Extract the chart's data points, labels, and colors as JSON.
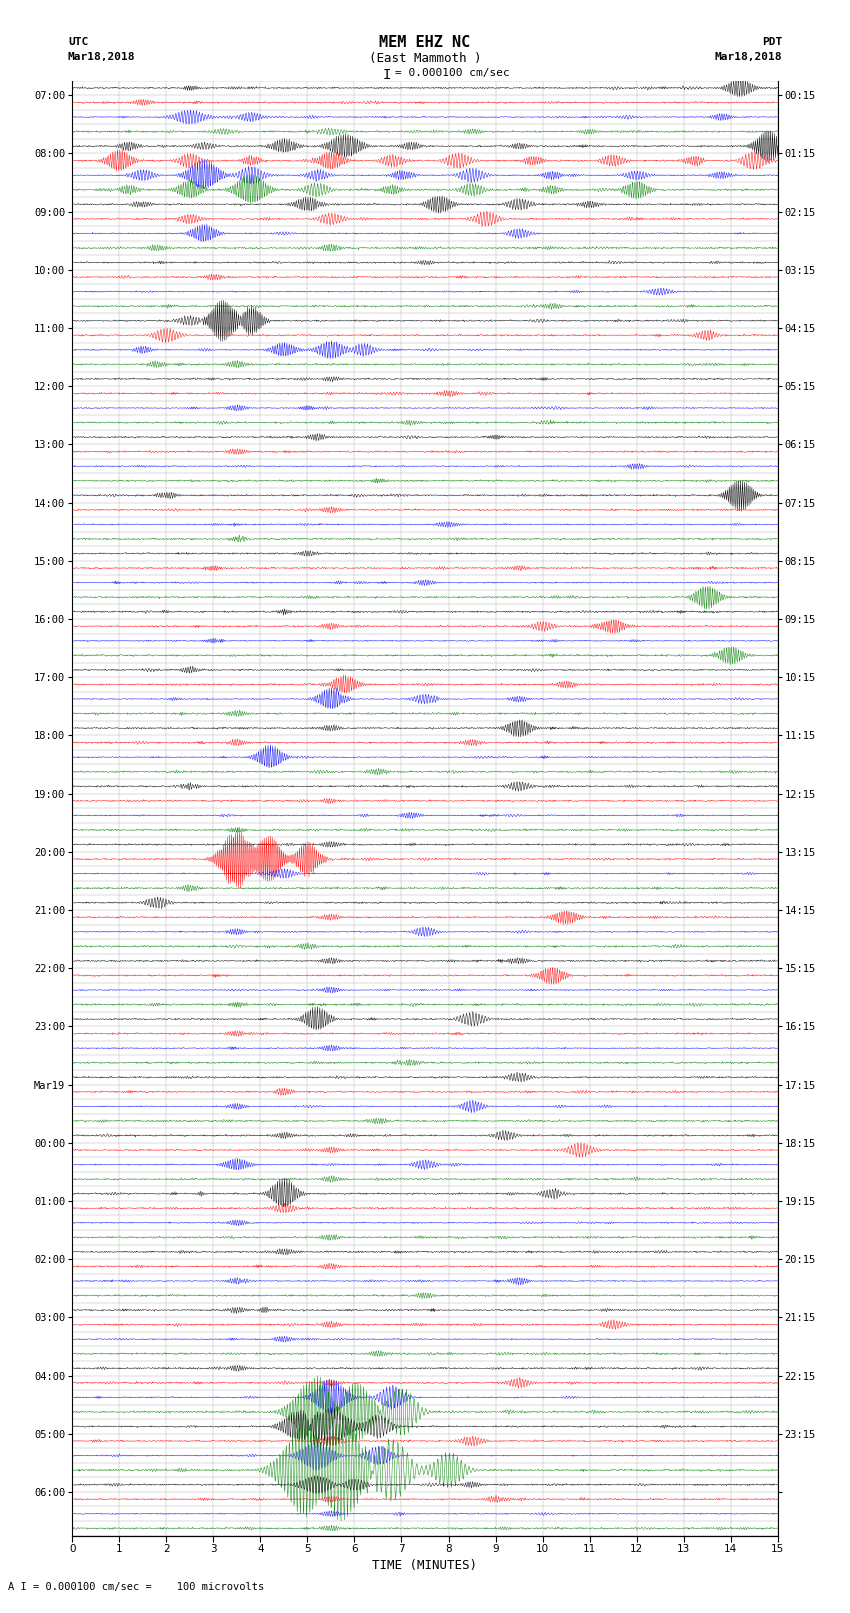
{
  "title_line1": "MEM EHZ NC",
  "title_line2": "(East Mammoth )",
  "scale_text": "I = 0.000100 cm/sec",
  "bottom_note": "A I = 0.000100 cm/sec =    100 microvolts",
  "utc_label": "UTC",
  "utc_date": "Mar18,2018",
  "pdt_label": "PDT",
  "pdt_date": "Mar18,2018",
  "xlabel": "TIME (MINUTES)",
  "xmin": 0,
  "xmax": 15,
  "bg_color": "#ffffff",
  "trace_colors": [
    "black",
    "red",
    "blue",
    "green"
  ],
  "grid_color": "#aaaaaa",
  "n_rows": 100,
  "noise_amplitude": 0.06,
  "utc_times": [
    "07:00",
    "",
    "",
    "",
    "08:00",
    "",
    "",
    "",
    "09:00",
    "",
    "",
    "",
    "10:00",
    "",
    "",
    "",
    "11:00",
    "",
    "",
    "",
    "12:00",
    "",
    "",
    "",
    "13:00",
    "",
    "",
    "",
    "14:00",
    "",
    "",
    "",
    "15:00",
    "",
    "",
    "",
    "16:00",
    "",
    "",
    "",
    "17:00",
    "",
    "",
    "",
    "18:00",
    "",
    "",
    "",
    "19:00",
    "",
    "",
    "",
    "20:00",
    "",
    "",
    "",
    "21:00",
    "",
    "",
    "",
    "22:00",
    "",
    "",
    "",
    "23:00",
    "",
    "",
    "",
    "Mar19",
    "",
    "",
    "",
    "00:00",
    "",
    "",
    "",
    "01:00",
    "",
    "",
    "",
    "02:00",
    "",
    "",
    "",
    "03:00",
    "",
    "",
    "",
    "04:00",
    "",
    "",
    "",
    "05:00",
    "",
    "",
    "",
    "06:00",
    "",
    "",
    ""
  ],
  "pdt_times": [
    "00:15",
    "",
    "",
    "",
    "01:15",
    "",
    "",
    "",
    "02:15",
    "",
    "",
    "",
    "03:15",
    "",
    "",
    "",
    "04:15",
    "",
    "",
    "",
    "05:15",
    "",
    "",
    "",
    "06:15",
    "",
    "",
    "",
    "07:15",
    "",
    "",
    "",
    "08:15",
    "",
    "",
    "",
    "09:15",
    "",
    "",
    "",
    "10:15",
    "",
    "",
    "",
    "11:15",
    "",
    "",
    "",
    "12:15",
    "",
    "",
    "",
    "13:15",
    "",
    "",
    "",
    "14:15",
    "",
    "",
    "",
    "15:15",
    "",
    "",
    "",
    "16:15",
    "",
    "",
    "",
    "17:15",
    "",
    "",
    "",
    "18:15",
    "",
    "",
    "",
    "19:15",
    "",
    "",
    "",
    "20:15",
    "",
    "",
    "",
    "21:15",
    "",
    "",
    "",
    "22:15",
    "",
    "",
    "",
    "23:15",
    "",
    "",
    "",
    "",
    "",
    "",
    ""
  ]
}
